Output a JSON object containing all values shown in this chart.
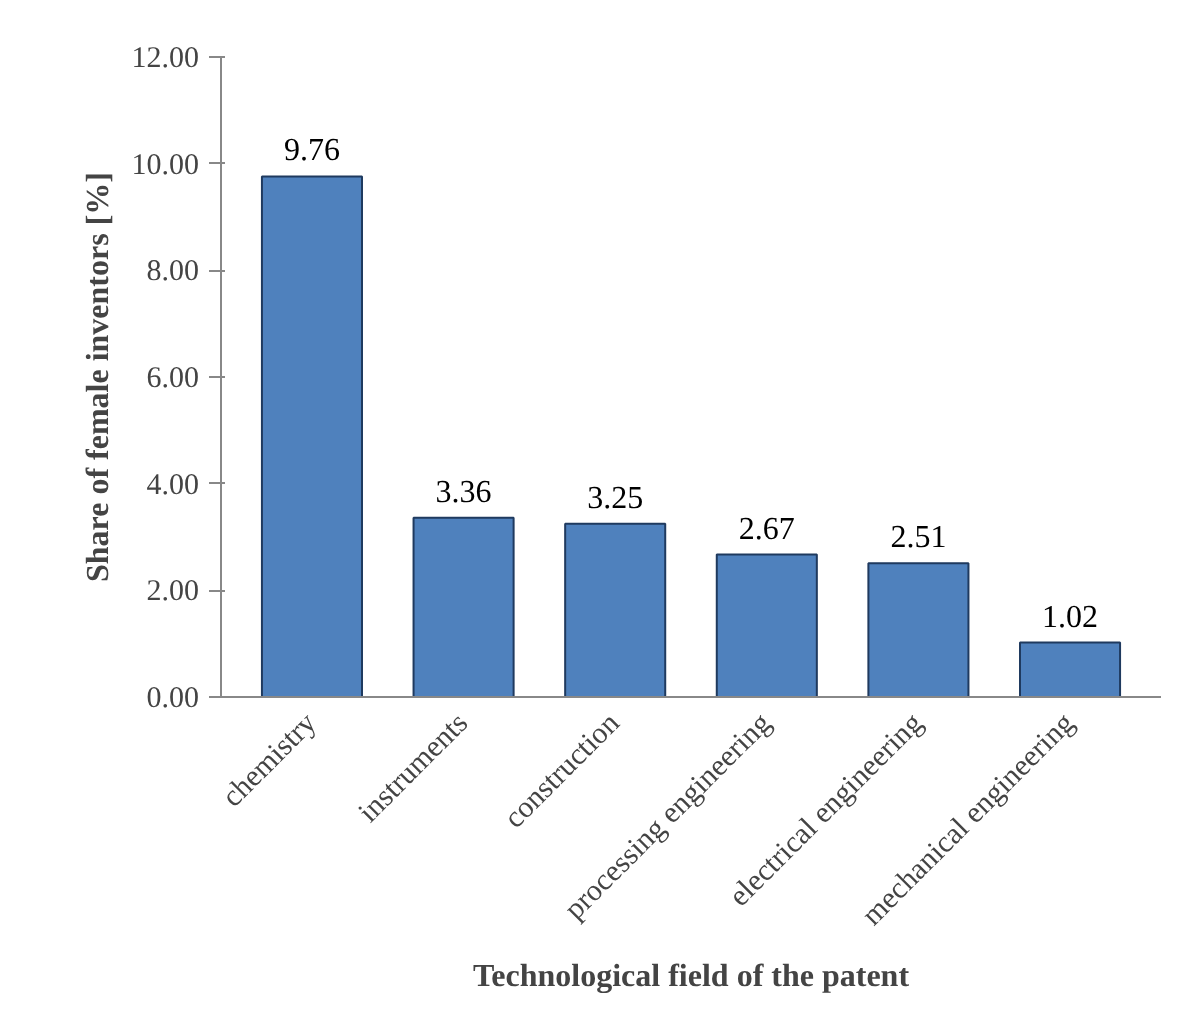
{
  "chart_data": {
    "type": "bar",
    "xlabel": "Technological field of the patent",
    "ylabel": "Share of female inventors [%]",
    "categories": [
      "chemistry",
      "instruments",
      "construction",
      "processing engineering",
      "electrical engineering",
      "mechanical engineering"
    ],
    "values": [
      9.76,
      3.36,
      3.25,
      2.67,
      2.51,
      1.02
    ],
    "color": "#4f81bd",
    "ylim": [
      0,
      12
    ],
    "yticks": [
      {
        "value": 0,
        "label": "0.00"
      },
      {
        "value": 2,
        "label": "2.00"
      },
      {
        "value": 4,
        "label": "4.00"
      },
      {
        "value": 6,
        "label": "6.00"
      },
      {
        "value": 8,
        "label": "8.00"
      },
      {
        "value": 10,
        "label": "10.00"
      },
      {
        "value": 12,
        "label": "12.00"
      }
    ],
    "data_labels": true,
    "grid": false
  }
}
